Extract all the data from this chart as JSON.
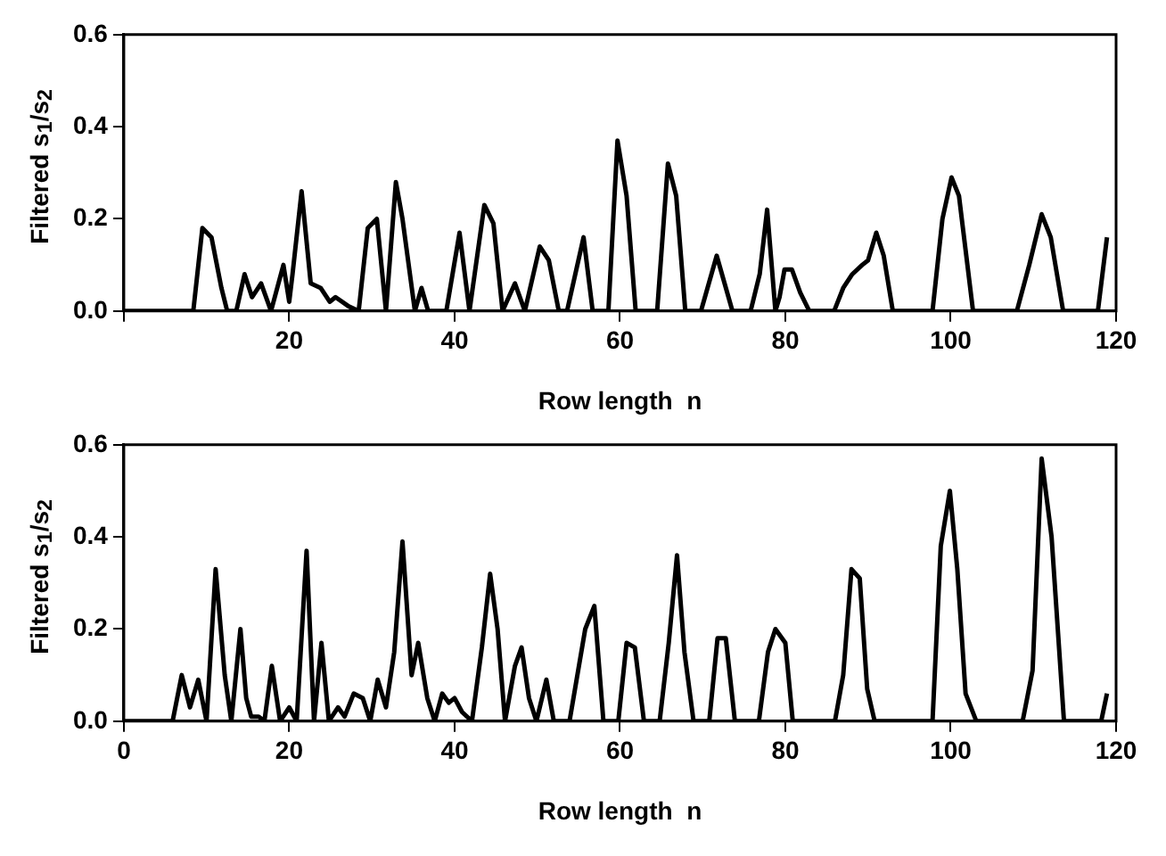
{
  "chart_data": [
    {
      "type": "line",
      "xlabel": "Row length  n",
      "ylabel": "Filtered s$_{1}$/s$_{2}$",
      "color": "#000000",
      "marker": "none",
      "line_style": "solid",
      "xlim": [
        0,
        120
      ],
      "xticks": [
        {
          "value": 0,
          "label": null
        },
        20,
        40,
        60,
        80,
        100,
        120
      ],
      "ylim": [
        0,
        0.6
      ],
      "yticks": [
        {
          "value": 0,
          "label": "0.0"
        },
        {
          "value": 0.2,
          "label": "0.2"
        },
        {
          "value": 0.4,
          "label": "0.4"
        },
        {
          "value": 0.6,
          "label": "0.6"
        }
      ],
      "x": [
        0,
        8.4,
        9.5,
        10.6,
        11.8,
        12.5,
        13.6,
        14.6,
        15.5,
        16.6,
        17.8,
        19.3,
        20,
        20.4,
        21.5,
        22.6,
        23.8,
        24.9,
        25.6,
        27.2,
        28.4,
        29.5,
        30.6,
        31.7,
        32.9,
        33.7,
        35.2,
        36,
        36.8,
        39,
        40.6,
        41.8,
        43.6,
        44.7,
        45.8,
        47.3,
        48.5,
        50.3,
        51.4,
        52.6,
        53.6,
        55.6,
        56.7,
        58.6,
        59.7,
        60.8,
        61.9,
        64.5,
        65.8,
        66.8,
        67.9,
        69.8,
        71.7,
        73.6,
        75.8,
        76.9,
        77.8,
        78.8,
        79.3,
        79.9,
        80.8,
        81.8,
        82.9,
        85.9,
        87,
        88.1,
        89.3,
        90,
        91,
        91.9,
        93,
        97.8,
        99,
        100.1,
        101,
        102.7,
        108,
        109.5,
        111,
        112.1,
        113.6,
        117.8,
        118.9
      ],
      "values": [
        0,
        0,
        0.18,
        0.16,
        0.05,
        0,
        0,
        0.08,
        0.03,
        0.06,
        0,
        0.1,
        0.02,
        0.08,
        0.26,
        0.06,
        0.05,
        0.02,
        0.03,
        0.01,
        0,
        0.18,
        0.2,
        0,
        0.28,
        0.2,
        0,
        0.05,
        0,
        0,
        0.17,
        0,
        0.23,
        0.19,
        0,
        0.06,
        0,
        0.14,
        0.11,
        0,
        0,
        0.16,
        0,
        0,
        0.37,
        0.25,
        0,
        0,
        0.32,
        0.25,
        0,
        0,
        0.12,
        0,
        0,
        0.08,
        0.22,
        0,
        0.03,
        0.09,
        0.09,
        0.04,
        0,
        0,
        0.05,
        0.08,
        0.1,
        0.11,
        0.17,
        0.12,
        0,
        0,
        0.2,
        0.29,
        0.25,
        0,
        0,
        0.1,
        0.21,
        0.16,
        0,
        0,
        0.16
      ]
    },
    {
      "type": "line",
      "xlabel": "Row length  n",
      "ylabel": "Filtered s$_{1}$/s$_{2}$",
      "color": "#000000",
      "marker": "none",
      "line_style": "solid",
      "xlim": [
        0,
        120
      ],
      "xticks": [
        0,
        20,
        40,
        60,
        80,
        100,
        120
      ],
      "ylim": [
        0,
        0.6
      ],
      "yticks": [
        {
          "value": 0,
          "label": "0.0"
        },
        {
          "value": 0.2,
          "label": "0.2"
        },
        {
          "value": 0.4,
          "label": "0.4"
        },
        {
          "value": 0.6,
          "label": "0.6"
        }
      ],
      "x": [
        0,
        5.9,
        7,
        8,
        9,
        10,
        11.1,
        12.2,
        13,
        14.1,
        14.8,
        15.4,
        16.3,
        17,
        17.9,
        18.9,
        20,
        20.9,
        22.1,
        23,
        23.9,
        24.8,
        25.9,
        26.7,
        27.8,
        28.9,
        29.8,
        30.7,
        31.7,
        32.7,
        33.7,
        34.8,
        35.6,
        36.7,
        37.6,
        38.5,
        39.3,
        40,
        40.9,
        42.1,
        43.3,
        44.3,
        45.2,
        46.1,
        47.3,
        48.1,
        49,
        49.9,
        51.1,
        52,
        53.9,
        55.8,
        56.9,
        58,
        59.8,
        60.8,
        61.8,
        62.9,
        64.8,
        65.9,
        66.9,
        67.8,
        68.9,
        70.8,
        71.8,
        72.8,
        73.9,
        76.8,
        77.9,
        78.8,
        80,
        80.9,
        86,
        87,
        88,
        89,
        89.9,
        90.8,
        97.8,
        98.8,
        99.9,
        100.8,
        101.8,
        103.1,
        108.7,
        109.9,
        111,
        112.2,
        113.7,
        118.2,
        118.9
      ],
      "values": [
        0,
        0,
        0.1,
        0.03,
        0.09,
        0,
        0.33,
        0.1,
        0,
        0.2,
        0.05,
        0.01,
        0.01,
        0,
        0.12,
        0,
        0.03,
        0,
        0.37,
        0,
        0.17,
        0,
        0.03,
        0.01,
        0.06,
        0.05,
        0,
        0.09,
        0.03,
        0.15,
        0.39,
        0.1,
        0.17,
        0.05,
        0,
        0.06,
        0.04,
        0.05,
        0.02,
        0,
        0.16,
        0.32,
        0.2,
        0,
        0.12,
        0.16,
        0.05,
        0,
        0.09,
        0,
        0,
        0.2,
        0.25,
        0,
        0,
        0.17,
        0.16,
        0,
        0,
        0.17,
        0.36,
        0.15,
        0,
        0,
        0.18,
        0.18,
        0,
        0,
        0.15,
        0.2,
        0.17,
        0,
        0,
        0.1,
        0.33,
        0.31,
        0.07,
        0,
        0,
        0.38,
        0.5,
        0.33,
        0.06,
        0,
        0,
        0.11,
        0.57,
        0.4,
        0,
        0,
        0.06
      ]
    }
  ]
}
